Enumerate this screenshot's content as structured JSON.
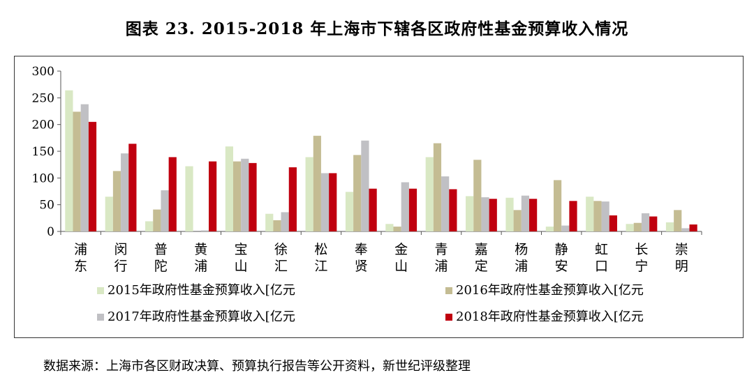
{
  "title": "图表 23. 2015-2018 年上海市下辖各区政府性基金预算收入情况",
  "source": "数据来源：上海市各区财政决算、预算执行报告等公开资料，新世纪评级整理",
  "chart_data": {
    "type": "bar",
    "categories": [
      "浦东",
      "闵行",
      "普陀",
      "黄浦",
      "宝山",
      "徐汇",
      "松江",
      "奉贤",
      "金山",
      "青浦",
      "嘉定",
      "杨浦",
      "静安",
      "虹口",
      "长宁",
      "崇明"
    ],
    "series": [
      {
        "name": "2015年政府性基金预算收入[亿元",
        "color": "#d9e8c4",
        "values": [
          264,
          65,
          19,
          122,
          159,
          33,
          139,
          74,
          14,
          139,
          66,
          63,
          9,
          65,
          14,
          17
        ]
      },
      {
        "name": "2016年政府性基金预算收入[亿元",
        "color": "#c4bc93",
        "values": [
          224,
          113,
          41,
          0,
          131,
          21,
          179,
          143,
          9,
          165,
          134,
          40,
          96,
          57,
          16,
          40
        ]
      },
      {
        "name": "2017年政府性基金预算收入[亿元",
        "color": "#c0c0c4",
        "values": [
          238,
          146,
          77,
          2,
          136,
          36,
          109,
          170,
          92,
          103,
          64,
          67,
          11,
          56,
          34,
          6
        ]
      },
      {
        "name": "2018年政府性基金预算收入[亿元",
        "color": "#c0000f",
        "values": [
          205,
          164,
          139,
          131,
          128,
          120,
          109,
          80,
          80,
          79,
          61,
          61,
          57,
          30,
          28,
          13
        ]
      }
    ],
    "ylim": [
      0,
      300
    ],
    "yticks": [
      0,
      50,
      100,
      150,
      200,
      250,
      300
    ],
    "legend_position": "bottom"
  }
}
